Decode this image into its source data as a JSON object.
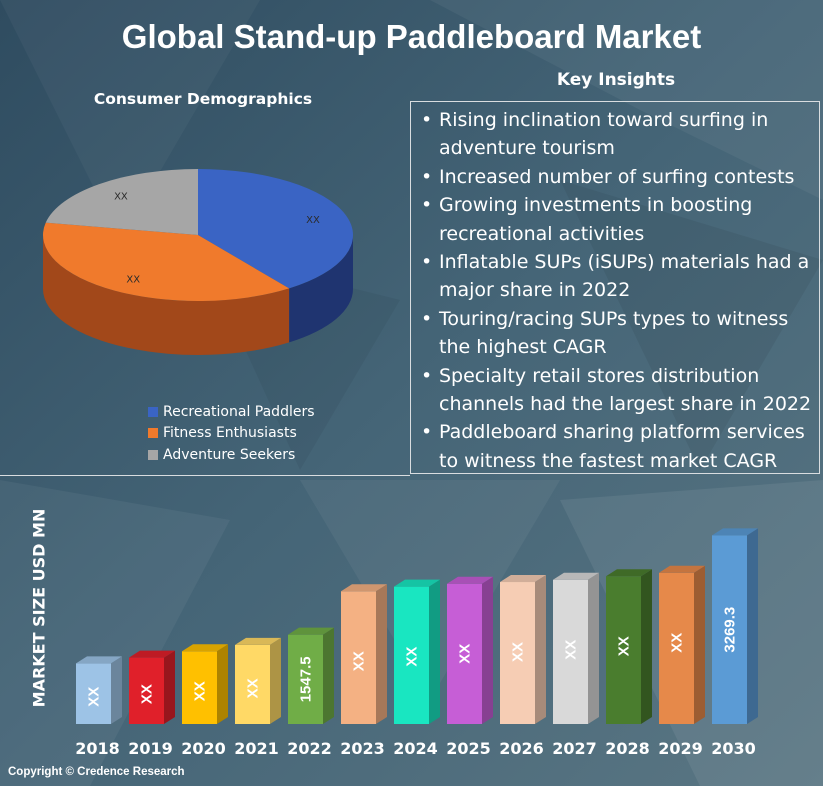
{
  "title": "Global Stand-up Paddleboard Market",
  "copyright": "Copyright © Credence Research",
  "colors": {
    "background": "#3c5a6b",
    "text": "#ffffff",
    "box_border": "#d9dde0"
  },
  "insights": {
    "title": "Key Insights",
    "items": [
      "Rising inclination toward surfing in adventure tourism",
      "Increased number of surfing contests",
      "Growing investments in boosting recreational activities",
      "Inflatable SUPs (iSUPs) materials had a major share in 2022",
      "Touring/racing SUPs types to witness the highest CAGR",
      "Specialty retail stores distribution channels had the largest share in 2022",
      "Paddleboard sharing platform services to witness the fastest market CAGR"
    ]
  },
  "chart_data": [
    {
      "type": "pie",
      "title": "Consumer Demographics",
      "slices": [
        {
          "name": "Recreational Paddlers",
          "value": 40,
          "label": "XX",
          "color": "#3a64c4",
          "side_color": "#1f3470"
        },
        {
          "name": "Fitness Enthusiasts",
          "value": 38,
          "label": "XX",
          "color": "#f07a2c",
          "side_color": "#a2481a"
        },
        {
          "name": "Adventure Seekers",
          "value": 22,
          "label": "XX",
          "color": "#a6a6a6",
          "side_color": "#6f6f6f"
        }
      ],
      "legend_position": "bottom-left"
    },
    {
      "type": "bar",
      "ylabel": "MARKET SIZE USD MN",
      "categories": [
        "2018",
        "2019",
        "2020",
        "2021",
        "2022",
        "2023",
        "2024",
        "2025",
        "2026",
        "2027",
        "2028",
        "2029",
        "2030"
      ],
      "values": [
        1050,
        1150,
        1260,
        1370,
        1547.5,
        2300,
        2380,
        2430,
        2460,
        2500,
        2560,
        2620,
        3269.3
      ],
      "labels": [
        "XX",
        "XX",
        "XX",
        "XX",
        "1547.5",
        "XX",
        "XX",
        "XX",
        "XX",
        "XX",
        "XX",
        "XX",
        "3269.3"
      ],
      "colors": [
        "#9dc3e6",
        "#e0202a",
        "#ffc000",
        "#ffd966",
        "#70ad47",
        "#f4b183",
        "#19e6c1",
        "#c65ed6",
        "#f6cdb4",
        "#d9d9d9",
        "#4a7d2e",
        "#e6894a",
        "#5b9bd5"
      ],
      "ylim": [
        0,
        3500
      ],
      "grid": false
    }
  ]
}
